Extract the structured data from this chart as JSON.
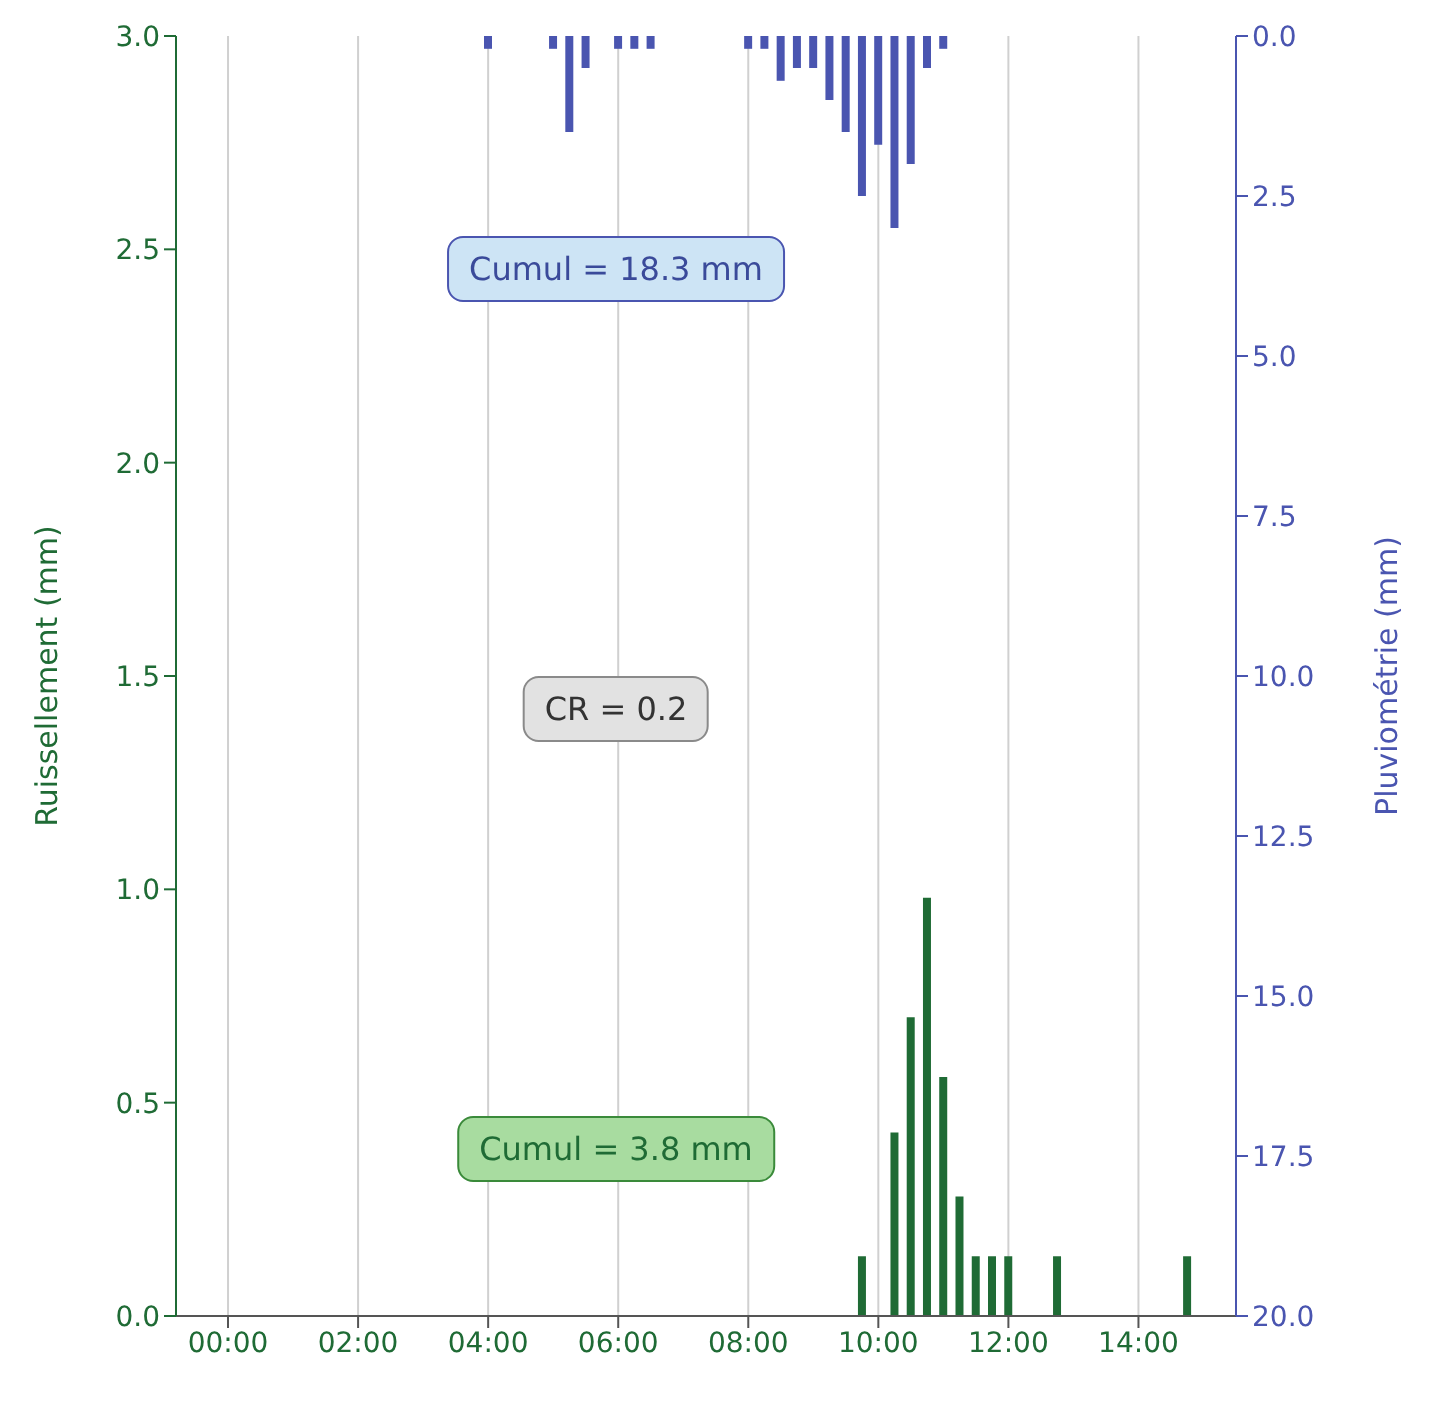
{
  "chart_data": {
    "type": "bar",
    "ylabel": "Ruissellement (mm)",
    "y2label": "Pluviométrie (mm)",
    "xlim": [
      -0.8,
      15.5
    ],
    "xticks": [
      {
        "value": 0,
        "label": "00:00"
      },
      {
        "value": 2,
        "label": "02:00"
      },
      {
        "value": 4,
        "label": "04:00"
      },
      {
        "value": 6,
        "label": "06:00"
      },
      {
        "value": 8,
        "label": "08:00"
      },
      {
        "value": 10,
        "label": "10:00"
      },
      {
        "value": 12,
        "label": "12:00"
      },
      {
        "value": 14,
        "label": "14:00"
      }
    ],
    "ylim": [
      0,
      3
    ],
    "yticks": [
      {
        "value": 0,
        "label": "0.0"
      },
      {
        "value": 0.5,
        "label": "0.5"
      },
      {
        "value": 1,
        "label": "1.0"
      },
      {
        "value": 1.5,
        "label": "1.5"
      },
      {
        "value": 2,
        "label": "2.0"
      },
      {
        "value": 2.5,
        "label": "2.5"
      },
      {
        "value": 3,
        "label": "3.0"
      }
    ],
    "y2lim": [
      20,
      0
    ],
    "y2ticks": [
      {
        "value": 0,
        "label": "0.0"
      },
      {
        "value": 2.5,
        "label": "2.5"
      },
      {
        "value": 5,
        "label": "5.0"
      },
      {
        "value": 7.5,
        "label": "7.5"
      },
      {
        "value": 10,
        "label": "10.0"
      },
      {
        "value": 12.5,
        "label": "12.5"
      },
      {
        "value": 15,
        "label": "15.0"
      },
      {
        "value": 17.5,
        "label": "17.5"
      },
      {
        "value": 20,
        "label": "20.0"
      }
    ],
    "grid": "x",
    "series": [
      {
        "color": "#1f6b35",
        "x": [
          9.75,
          10.25,
          10.5,
          10.75,
          11,
          11.25,
          11.5,
          11.75,
          12,
          12.75,
          14.75
        ],
        "values": [
          0.14,
          0.43,
          0.7,
          0.98,
          0.56,
          0.28,
          0.14,
          0.14,
          0.14,
          0.14,
          0.14
        ]
      },
      {
        "color": "#4a55b0",
        "axis": "y2",
        "x": [
          4,
          5,
          5.25,
          5.5,
          6,
          6.25,
          6.5,
          8,
          8.25,
          8.5,
          8.75,
          9,
          9.25,
          9.5,
          9.75,
          10,
          10.25,
          10.5,
          10.75,
          11
        ],
        "values": [
          0.2,
          0.2,
          1.5,
          0.5,
          0.2,
          0.2,
          0.2,
          0.2,
          0.2,
          0.7,
          0.5,
          0.5,
          1,
          1.5,
          2.5,
          1.7,
          3,
          2,
          0.5,
          0.2
        ]
      }
    ],
    "annotations": [
      "Cumul = 18.3 mm",
      "CR = 0.2",
      "Cumul = 3.8 mm"
    ]
  }
}
